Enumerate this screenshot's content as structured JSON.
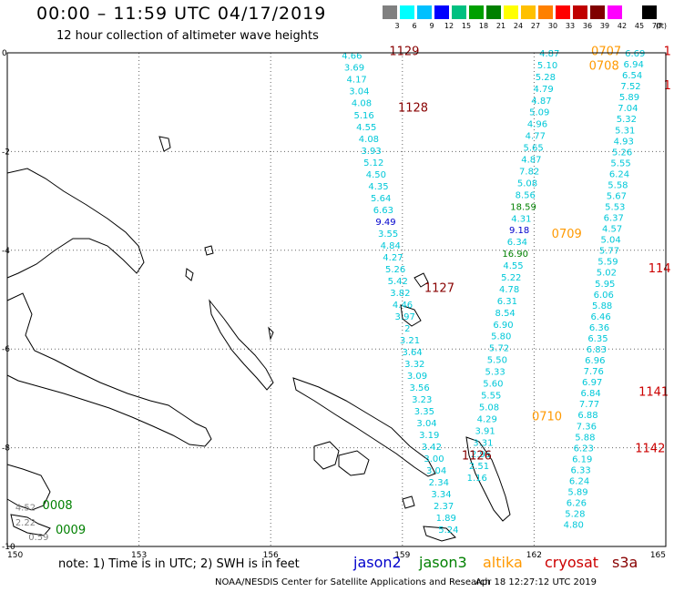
{
  "header": {
    "title": "00:00 – 11:59 UTC 04/17/2019",
    "subtitle": "12 hour collection of altimeter wave heights"
  },
  "legend": {
    "unit": "(ft)",
    "labels": [
      "3",
      "6",
      "9",
      "12",
      "15",
      "18",
      "21",
      "24",
      "27",
      "30",
      "33",
      "36",
      "39",
      "42",
      "45",
      "70"
    ],
    "colors": [
      "#808080",
      "#00ffff",
      "#00c0ff",
      "#0000ff",
      "#00c080",
      "#00a000",
      "#008000",
      "#ffff00",
      "#ffc000",
      "#ff8000",
      "#ff0000",
      "#c00000",
      "#800000",
      "#ff00ff",
      "#ffffff",
      "#000000"
    ]
  },
  "axes": {
    "lon_labels": [
      "150",
      "153",
      "156",
      "159",
      "162",
      "165"
    ],
    "lat_labels": [
      "0",
      "-2",
      "-4",
      "-6",
      "-8",
      "-10"
    ]
  },
  "satellites": [
    {
      "name": "jason2",
      "color": "#0000cc"
    },
    {
      "name": "jason3",
      "color": "#008000"
    },
    {
      "name": "altika",
      "color": "#ff9900"
    },
    {
      "name": "cryosat",
      "color": "#cc0000"
    },
    {
      "name": "s3a",
      "color": "#880000"
    }
  ],
  "footer": {
    "note": "note:  1) Time is in UTC; 2) SWH is in feet",
    "credit": "NOAA/NESDIS Center for Satellite Applications and Research",
    "generated": "Apr 18 12:27:12 UTC 2019"
  },
  "map": {
    "time_labels": [
      {
        "text": "1129",
        "color": "#880000",
        "lon": 158.7,
        "lat": 0.05
      },
      {
        "text": "1128",
        "color": "#880000",
        "lon": 158.9,
        "lat": -1.1
      },
      {
        "text": "1127",
        "color": "#880000",
        "lon": 159.5,
        "lat": -4.75
      },
      {
        "text": "1126",
        "color": "#880000",
        "lon": 160.35,
        "lat": -8.15
      },
      {
        "text": "0707",
        "color": "#ff9900",
        "lon": 163.3,
        "lat": 0.05
      },
      {
        "text": "0708",
        "color": "#ff9900",
        "lon": 163.25,
        "lat": -0.25
      },
      {
        "text": "0709",
        "color": "#ff9900",
        "lon": 162.4,
        "lat": -3.65
      },
      {
        "text": "0710",
        "color": "#ff9900",
        "lon": 161.95,
        "lat": -7.35
      },
      {
        "text": "114",
        "color": "#cc0000",
        "lon": 164.6,
        "lat": -4.35
      },
      {
        "text": "1141",
        "color": "#cc0000",
        "lon": 164.38,
        "lat": -6.85
      },
      {
        "text": "1142",
        "color": "#cc0000",
        "lon": 164.3,
        "lat": -8.0
      },
      {
        "text": "1",
        "color": "#cc0000",
        "lon": 164.95,
        "lat": 0.05
      },
      {
        "text": "1",
        "color": "#cc0000",
        "lon": 164.95,
        "lat": -0.65
      },
      {
        "text": "0008",
        "color": "#008000",
        "lon": 150.8,
        "lat": -9.15
      },
      {
        "text": "0009",
        "color": "#008000",
        "lon": 151.1,
        "lat": -9.65
      }
    ],
    "tracks": [
      {
        "name": "s3a-track",
        "color": "#00c8d8",
        "lon_start": 157.85,
        "lon_end": 160.05,
        "lat_start": -0.05,
        "lat_end": -9.65,
        "values": [
          "4.66",
          "3.69",
          "4.17",
          "3.04",
          "4.08",
          "5.16",
          "4.55",
          "4.08",
          "3.93",
          "5.12",
          "4.50",
          "4.35",
          "5.64",
          "6.63",
          "9.49",
          "3.55",
          "4.84",
          "4.27",
          "5.26",
          "5.42",
          "3.82",
          "4.46",
          "3.97",
          "2",
          "3.21",
          "3.64",
          "3.32",
          "3.09",
          "3.56",
          "3.23",
          "3.35",
          "3.04",
          "3.19",
          "3.42",
          "3.00",
          "3.04",
          "2.34",
          "3.34",
          "2.37",
          "1.89",
          "5.24"
        ]
      },
      {
        "name": "altika-track",
        "color": "#00c8d8",
        "lon_start": 162.35,
        "lon_end": 160.7,
        "lat_start": 0.0,
        "lat_end": -8.6,
        "values": [
          "4.87",
          "5.10",
          "5.28",
          "4.79",
          "4.87",
          "5.09",
          "4.96",
          "4.77",
          "5.65",
          "4.87",
          "7.82",
          "5.08",
          "8.56",
          "18.59",
          "4.31",
          "9.18",
          "6.34",
          "16.90",
          "4.55",
          "5.22",
          "4.78",
          "6.31",
          "8.54",
          "6.90",
          "5.80",
          "5.72",
          "5.50",
          "5.33",
          "5.60",
          "5.55",
          "5.08",
          "4.29",
          "3.91",
          "3.31",
          "2.95",
          "2.51",
          "1.16"
        ]
      },
      {
        "name": "cryosat-track",
        "color": "#00c8d8",
        "lon_start": 164.3,
        "lon_end": 162.9,
        "lat_start": 0.0,
        "lat_end": -9.55,
        "values": [
          "6.69",
          "6.94",
          "6.54",
          "7.52",
          "5.89",
          "7.04",
          "5.32",
          "5.31",
          "4.93",
          "5.26",
          "5.55",
          "6.24",
          "5.58",
          "5.67",
          "5.53",
          "6.37",
          "4.57",
          "5.04",
          "5.77",
          "5.59",
          "5.02",
          "5.95",
          "6.06",
          "5.88",
          "6.46",
          "6.36",
          "6.35",
          "6.83",
          "6.96",
          "7.76",
          "6.97",
          "6.84",
          "7.77",
          "6.88",
          "7.36",
          "5.88",
          "6.23",
          "6.19",
          "6.33",
          "6.24",
          "5.89",
          "6.26",
          "5.28",
          "4.80"
        ]
      }
    ],
    "sw_values": [
      {
        "text": "4.52",
        "lon": 150.1,
        "lat": -9.2
      },
      {
        "text": "2.22",
        "lon": 150.1,
        "lat": -9.5
      },
      {
        "text": "0.59",
        "lon": 150.4,
        "lat": -9.8
      }
    ]
  }
}
